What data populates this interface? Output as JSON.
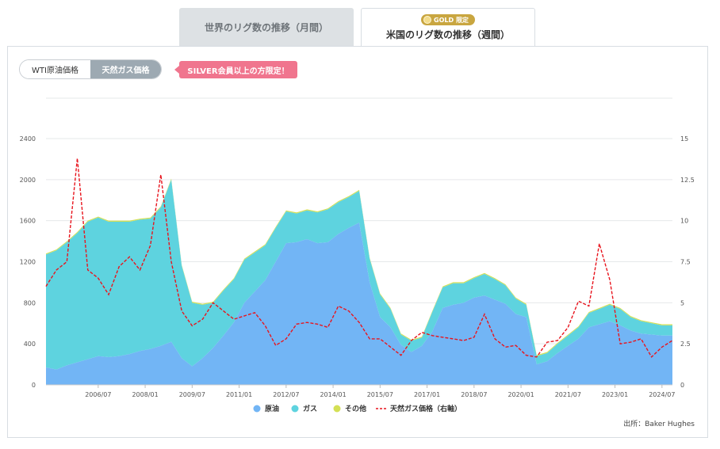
{
  "tabs": {
    "monthly_label": "世界のリグ数の推移（月間）",
    "weekly_label": "米国のリグ数の推移（週間）",
    "gold_badge": "GOLD 限定"
  },
  "toggle": {
    "wti_label": "WTI原油価格",
    "gas_label": "天然ガス価格"
  },
  "silver_note": "SILVER会員以上の方限定！",
  "source": "出所：Baker Hughes",
  "colors": {
    "oil": "#72b5f5",
    "gas": "#5ed3df",
    "other": "#d4e055",
    "price": "#e8141d"
  },
  "chart_data": {
    "type": "area",
    "x_range": [
      "2004-11",
      "2024-11"
    ],
    "left_axis": {
      "ticks": [
        0,
        400,
        800,
        1200,
        1600,
        2000,
        2400
      ],
      "lim": [
        0,
        2400
      ]
    },
    "right_axis": {
      "ticks": [
        "0",
        "2.5",
        "5",
        "7.5",
        "10",
        "12.5",
        "15"
      ],
      "lim": [
        0,
        15
      ]
    },
    "x_ticks": [
      "2006/07",
      "2008/01",
      "2009/07",
      "2011/01",
      "2012/07",
      "2014/01",
      "2015/07",
      "2017/01",
      "2018/07",
      "2020/01",
      "2021/07",
      "2023/01",
      "2024/07"
    ],
    "x": [
      "2004-11",
      "2005-03",
      "2005-07",
      "2005-11",
      "2006-03",
      "2006-07",
      "2006-11",
      "2007-03",
      "2007-07",
      "2007-11",
      "2008-03",
      "2008-07",
      "2008-11",
      "2009-03",
      "2009-07",
      "2009-11",
      "2010-03",
      "2010-07",
      "2010-11",
      "2011-03",
      "2011-07",
      "2011-11",
      "2012-03",
      "2012-07",
      "2012-11",
      "2013-03",
      "2013-07",
      "2013-11",
      "2014-03",
      "2014-07",
      "2014-11",
      "2015-03",
      "2015-07",
      "2015-11",
      "2016-03",
      "2016-07",
      "2016-11",
      "2017-03",
      "2017-07",
      "2017-11",
      "2018-03",
      "2018-07",
      "2018-11",
      "2019-03",
      "2019-07",
      "2019-11",
      "2020-03",
      "2020-07",
      "2020-11",
      "2021-03",
      "2021-07",
      "2021-11",
      "2022-03",
      "2022-07",
      "2022-11",
      "2023-03",
      "2023-07",
      "2023-11",
      "2024-03",
      "2024-07",
      "2024-11"
    ],
    "series": [
      {
        "name": "原油",
        "values": [
          170,
          150,
          190,
          220,
          250,
          280,
          270,
          280,
          300,
          330,
          350,
          380,
          420,
          260,
          180,
          260,
          360,
          480,
          610,
          800,
          910,
          1020,
          1200,
          1380,
          1390,
          1420,
          1380,
          1390,
          1470,
          1530,
          1580,
          1000,
          660,
          560,
          390,
          320,
          380,
          520,
          750,
          780,
          800,
          850,
          870,
          830,
          790,
          690,
          660,
          200,
          230,
          310,
          380,
          450,
          560,
          590,
          620,
          580,
          530,
          500,
          490,
          480,
          480
        ]
      },
      {
        "name": "ガス",
        "values": [
          1100,
          1160,
          1200,
          1260,
          1340,
          1350,
          1320,
          1310,
          1290,
          1280,
          1270,
          1350,
          1580,
          900,
          620,
          520,
          440,
          440,
          420,
          420,
          380,
          340,
          330,
          310,
          280,
          280,
          300,
          320,
          310,
          300,
          310,
          230,
          220,
          180,
          100,
          110,
          80,
          190,
          200,
          210,
          190,
          190,
          210,
          200,
          180,
          150,
          120,
          80,
          80,
          90,
          100,
          110,
          140,
          150,
          160,
          160,
          130,
          120,
          110,
          100,
          100
        ]
      },
      {
        "name": "その他",
        "values": [
          10,
          10,
          10,
          10,
          10,
          10,
          10,
          10,
          10,
          10,
          10,
          10,
          10,
          10,
          10,
          10,
          10,
          10,
          10,
          10,
          10,
          10,
          10,
          10,
          10,
          10,
          10,
          10,
          10,
          10,
          10,
          10,
          10,
          10,
          10,
          10,
          10,
          10,
          10,
          10,
          10,
          10,
          10,
          10,
          10,
          10,
          10,
          10,
          10,
          10,
          10,
          10,
          10,
          10,
          10,
          10,
          10,
          10,
          10,
          10,
          10
        ]
      },
      {
        "name": "天然ガス価格（右軸）",
        "axis": "right",
        "values": [
          6.0,
          7.0,
          7.5,
          13.8,
          7.0,
          6.5,
          5.5,
          7.2,
          7.8,
          7.0,
          8.5,
          12.8,
          7.5,
          4.5,
          3.6,
          4.0,
          5.0,
          4.5,
          4.0,
          4.2,
          4.4,
          3.6,
          2.4,
          2.8,
          3.7,
          3.8,
          3.7,
          3.5,
          4.8,
          4.5,
          3.8,
          2.8,
          2.8,
          2.3,
          1.8,
          2.7,
          3.2,
          3.0,
          2.9,
          2.8,
          2.7,
          2.9,
          4.3,
          2.8,
          2.3,
          2.4,
          1.8,
          1.7,
          2.6,
          2.7,
          3.5,
          5.1,
          4.8,
          8.6,
          6.4,
          2.5,
          2.6,
          2.8,
          1.7,
          2.3,
          2.7
        ]
      }
    ]
  }
}
